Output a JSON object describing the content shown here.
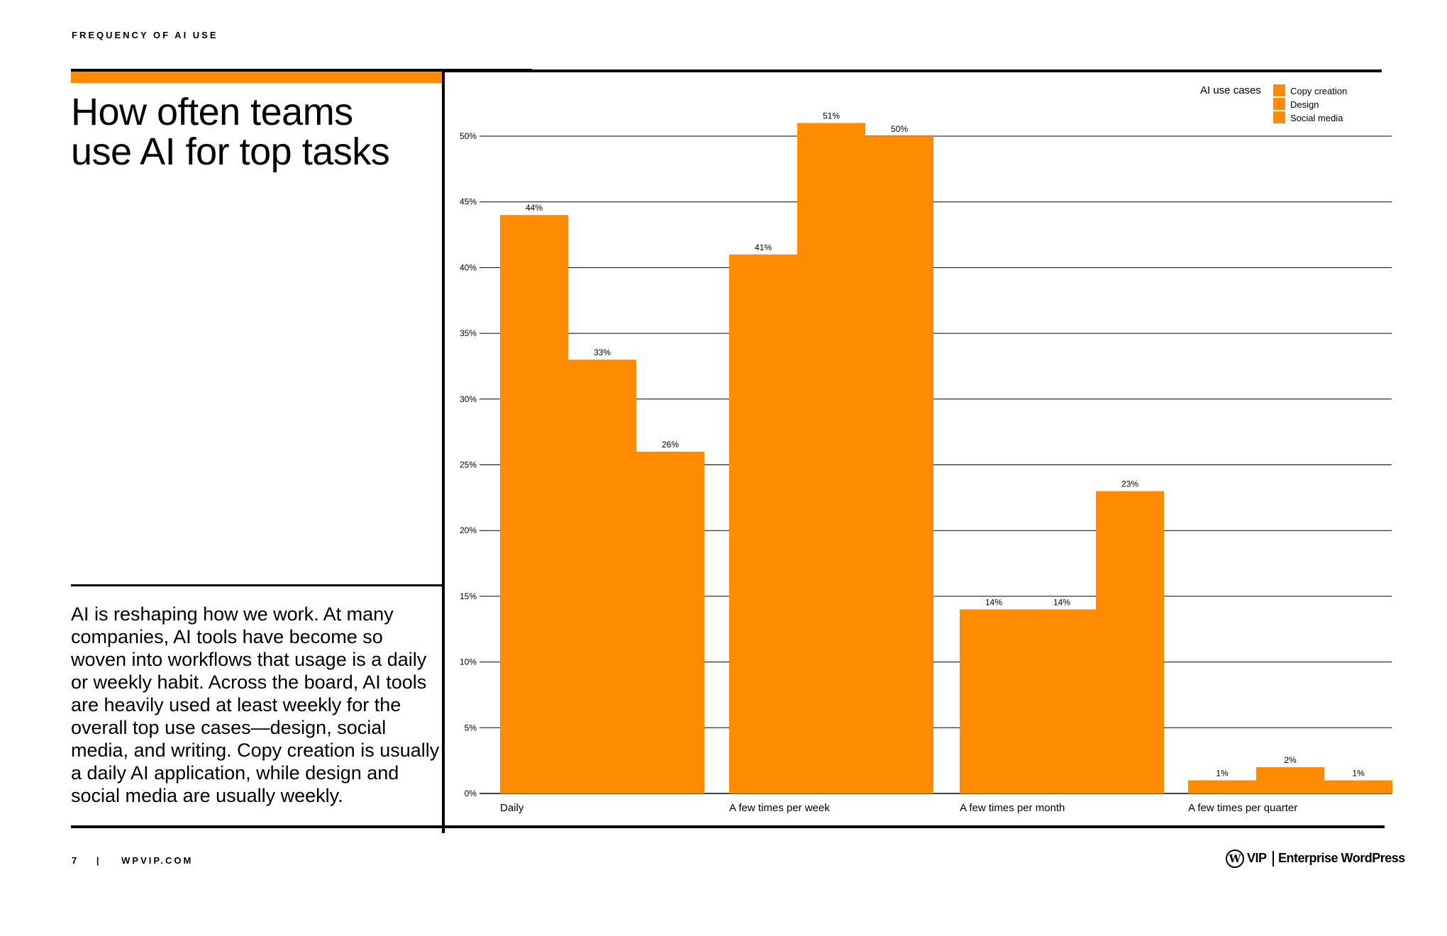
{
  "header": {
    "eyebrow": "FREQUENCY OF AI USE"
  },
  "title": {
    "line1": "How often teams",
    "line2": "use AI for top tasks"
  },
  "description": "AI is reshaping how we work. At many companies, AI tools have become so woven into workflows that usage is a daily or weekly habit. Across the board, AI tools are heavily used at least weekly for the overall top use cases—design, social media, and writing. Copy creation is usually a daily AI application, while design and social media are usually weekly.",
  "footer": {
    "page": "7",
    "separator": "|",
    "site": "WPVIP.COM",
    "logo_mark": "W",
    "logo_vip": "VIP",
    "logo_text": "Enterprise WordPress"
  },
  "colors": {
    "accent": "#ff8c00"
  },
  "chart_data": {
    "type": "bar",
    "categories": [
      "Daily",
      "A few times per week",
      "A few times per month",
      "A few times per quarter"
    ],
    "series": [
      {
        "name": "Copy creation",
        "values": [
          44,
          41,
          14,
          1
        ]
      },
      {
        "name": "Design",
        "values": [
          33,
          51,
          14,
          2
        ]
      },
      {
        "name": "Social media",
        "values": [
          26,
          50,
          23,
          1
        ]
      }
    ],
    "data_labels": [
      [
        "44%",
        "41%",
        "14%",
        "1%"
      ],
      [
        "33%",
        "51%",
        "14%",
        "2%"
      ],
      [
        "26%",
        "50%",
        "23%",
        "1%"
      ]
    ],
    "yticks": [
      0,
      5,
      10,
      15,
      20,
      25,
      30,
      35,
      40,
      45,
      50
    ],
    "ytick_labels": [
      "0%",
      "5%",
      "10%",
      "15%",
      "20%",
      "25%",
      "30%",
      "35%",
      "40%",
      "45%",
      "50%"
    ],
    "ylim": [
      0,
      50
    ],
    "legend_title": "AI use cases",
    "legend_position": "top-right",
    "grid": true
  }
}
